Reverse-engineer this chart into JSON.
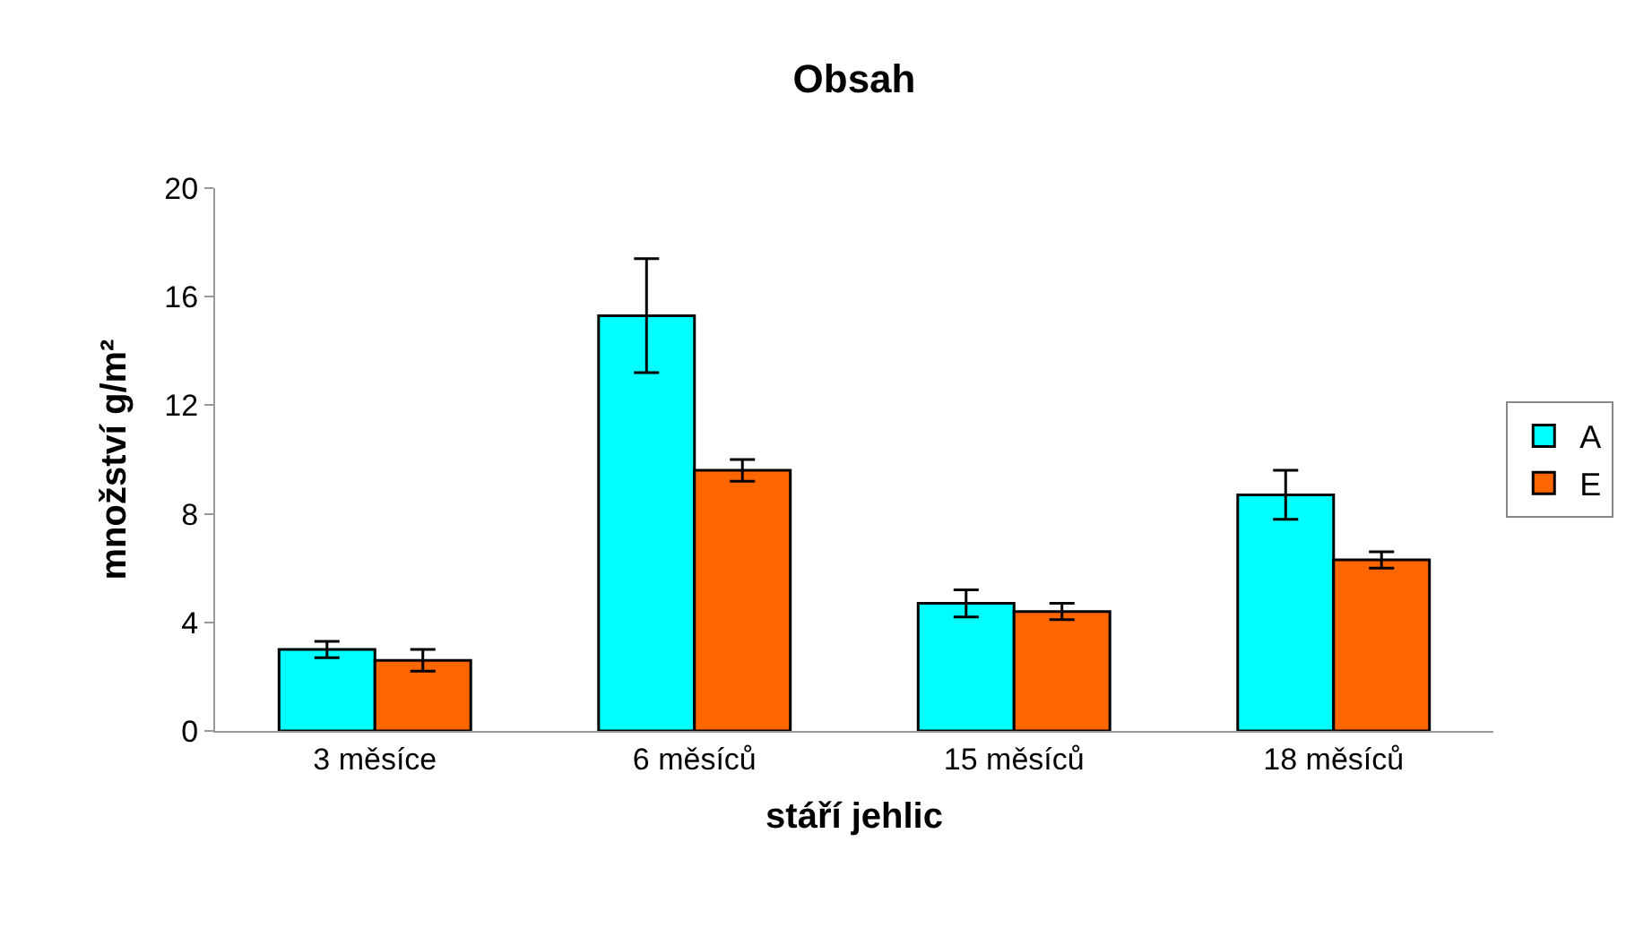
{
  "chart_data": {
    "type": "bar",
    "title": "Obsah",
    "xlabel": "stáří jehlic",
    "ylabel": "množství g/m²",
    "categories": [
      "3 měsíce",
      "6 měsíců",
      "15 měsíců",
      "18 měsíců"
    ],
    "series": [
      {
        "name": "A",
        "color": "#00ffff",
        "values": [
          3.0,
          15.3,
          4.7,
          8.7
        ],
        "errors": [
          0.3,
          2.1,
          0.5,
          0.9
        ]
      },
      {
        "name": "E",
        "color": "#ff6600",
        "values": [
          2.6,
          9.6,
          4.4,
          6.3
        ],
        "errors": [
          0.4,
          0.4,
          0.3,
          0.3
        ]
      }
    ],
    "ylim": [
      0,
      20
    ],
    "yticks": [
      0,
      4,
      8,
      12,
      16,
      20
    ],
    "legend": "right"
  }
}
